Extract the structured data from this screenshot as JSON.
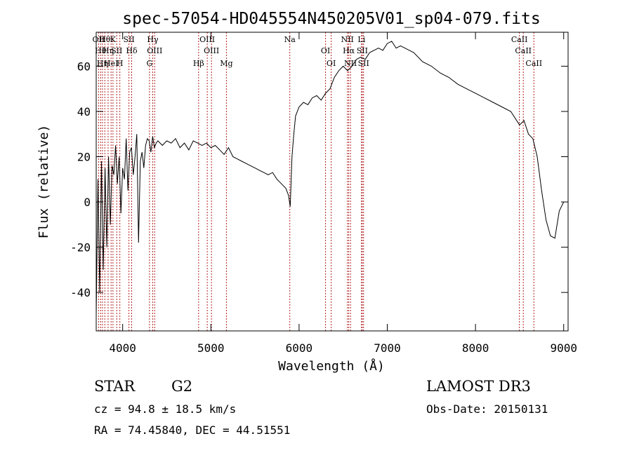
{
  "chart_data": {
    "type": "line",
    "title": "spec-57054-HD045554N450205V01_sp04-079.fits",
    "xlabel": "Wavelength (Å)",
    "ylabel": "Flux (relative)",
    "xlim": [
      3700,
      9050
    ],
    "ylim": [
      -57,
      75
    ],
    "xticks": [
      4000,
      5000,
      6000,
      7000,
      8000,
      9000
    ],
    "yticks": [
      -40,
      -20,
      0,
      20,
      40,
      60
    ],
    "grid": false,
    "line_color": "#000000",
    "marker_color": "#b22222",
    "series": [
      {
        "x": [
          3700,
          3720,
          3740,
          3760,
          3780,
          3800,
          3820,
          3840,
          3860,
          3880,
          3900,
          3920,
          3940,
          3960,
          3980,
          4000,
          4020,
          4040,
          4060,
          4080,
          4100,
          4120,
          4140,
          4160,
          4180,
          4200,
          4220,
          4240,
          4260,
          4280,
          4300,
          4320,
          4340,
          4360,
          4380,
          4400,
          4450,
          4500,
          4550,
          4600,
          4650,
          4700,
          4750,
          4800,
          4850,
          4900,
          4950,
          5000,
          5050,
          5100,
          5150,
          5200,
          5250,
          5300,
          5350,
          5400,
          5450,
          5500,
          5550,
          5600,
          5650,
          5700,
          5750,
          5800,
          5850,
          5880,
          5900,
          5920,
          5940,
          5960,
          6000,
          6050,
          6100,
          6150,
          6200,
          6250,
          6300,
          6350,
          6400,
          6450,
          6500,
          6550,
          6600,
          6650,
          6700,
          6750,
          6800,
          6850,
          6900,
          6950,
          7000,
          7050,
          7100,
          7150,
          7200,
          7250,
          7300,
          7400,
          7500,
          7600,
          7700,
          7800,
          7900,
          8000,
          8100,
          8200,
          8300,
          8400,
          8500,
          8550,
          8600,
          8650,
          8700,
          8750,
          8800,
          8850,
          8900,
          8950,
          9000
        ],
        "y": [
          -50,
          10,
          -40,
          18,
          -30,
          15,
          -20,
          20,
          -10,
          16,
          12,
          25,
          8,
          20,
          -5,
          15,
          10,
          28,
          5,
          22,
          24,
          12,
          20,
          30,
          -18,
          18,
          22,
          15,
          25,
          28,
          27,
          22,
          29,
          24,
          26,
          27,
          25,
          27,
          26,
          28,
          24,
          26,
          23,
          27,
          26,
          25,
          26,
          24,
          25,
          23,
          21,
          24,
          20,
          19,
          18,
          17,
          16,
          15,
          14,
          13,
          12,
          13,
          10,
          8,
          6,
          3,
          -2,
          20,
          30,
          38,
          42,
          44,
          43,
          46,
          47,
          45,
          48,
          50,
          55,
          58,
          60,
          58,
          60,
          63,
          64,
          63,
          66,
          67,
          68,
          67,
          70,
          71,
          68,
          69,
          68,
          67,
          66,
          62,
          60,
          57,
          55,
          52,
          50,
          48,
          46,
          44,
          42,
          40,
          34,
          36,
          30,
          28,
          20,
          5,
          -8,
          -15,
          -16,
          -4,
          0
        ]
      }
    ],
    "line_markers": [
      {
        "x": 3727,
        "label": "OII"
      },
      {
        "x": 3750,
        "label": "Hθ"
      },
      {
        "x": 3771,
        "label": "Hη"
      },
      {
        "x": 3798,
        "label": "Hθ"
      },
      {
        "x": 3835,
        "label": "Hη"
      },
      {
        "x": 3869,
        "label": "HeI"
      },
      {
        "x": 3890,
        "label": "K"
      },
      {
        "x": 3933,
        "label": "SII"
      },
      {
        "x": 3968,
        "label": "H"
      },
      {
        "x": 4071,
        "label": "SII"
      },
      {
        "x": 4102,
        "label": "Hδ"
      },
      {
        "x": 4304,
        "label": "G"
      },
      {
        "x": 4341,
        "label": "Hγ"
      },
      {
        "x": 4363,
        "label": "OIII"
      },
      {
        "x": 4861,
        "label": "Hβ"
      },
      {
        "x": 4959,
        "label": "OIII"
      },
      {
        "x": 5007,
        "label": "OIII"
      },
      {
        "x": 5176,
        "label": "Mg"
      },
      {
        "x": 5895,
        "label": "Na"
      },
      {
        "x": 6300,
        "label": "OI"
      },
      {
        "x": 6364,
        "label": "OI"
      },
      {
        "x": 6548,
        "label": "NII"
      },
      {
        "x": 6563,
        "label": "Hα"
      },
      {
        "x": 6583,
        "label": "NII"
      },
      {
        "x": 6708,
        "label": "Li"
      },
      {
        "x": 6716,
        "label": "SII"
      },
      {
        "x": 6731,
        "label": "SII"
      },
      {
        "x": 8498,
        "label": "CaII"
      },
      {
        "x": 8542,
        "label": "CaII"
      },
      {
        "x": 8662,
        "label": "CaII"
      }
    ]
  },
  "info": {
    "object_class": "STAR",
    "subclass": "G2",
    "cz": "cz = 94.8 ± 18.5 km/s",
    "coords": "RA =  74.45840, DEC =  44.51551",
    "survey": "LAMOST DR3",
    "obs_date": "Obs-Date: 20150131"
  }
}
